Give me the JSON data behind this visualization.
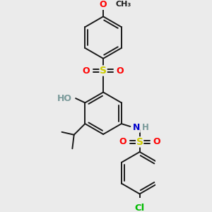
{
  "bg_color": "#ebebeb",
  "bond_color": "#1a1a1a",
  "bond_width": 1.4,
  "dbo": 0.05,
  "figsize": [
    3.0,
    3.0
  ],
  "dpi": 100,
  "colors": {
    "O": "#ff0000",
    "S": "#cccc00",
    "N": "#0000cc",
    "Cl": "#00bb00",
    "C": "#1a1a1a",
    "H": "#7a9a9a"
  },
  "font_size": 9.5,
  "ring_r": 0.38
}
